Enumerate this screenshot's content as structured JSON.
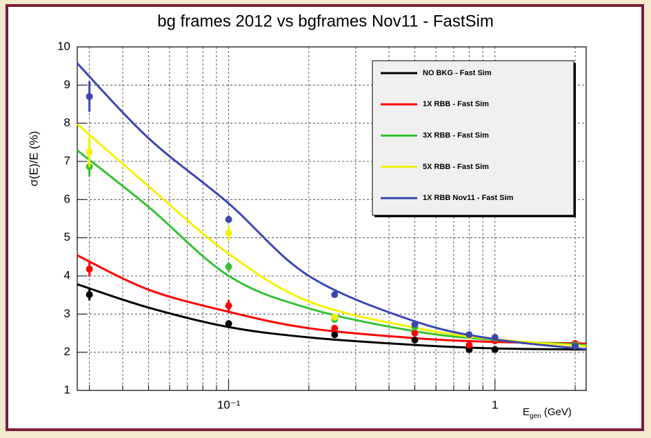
{
  "chart_data": {
    "type": "scatter-fit",
    "title": "bg frames 2012 vs bgframes Nov11 - FastSim",
    "xlabel": {
      "main": "E",
      "sub": "gen",
      "rest": " (GeV)"
    },
    "ylabel": "σ(E)/E (%)",
    "log_x": true,
    "grid": true,
    "legend_corner": "top-right",
    "xlim": [
      0.027,
      2.2
    ],
    "ylim": [
      1,
      10
    ],
    "xticks": [
      {
        "value": 0.1,
        "label": "10⁻¹"
      },
      1
    ],
    "xminor": [
      0.03,
      0.04,
      0.05,
      0.06,
      0.07,
      0.08,
      0.09,
      0.2,
      0.3,
      0.4,
      0.5,
      0.6,
      0.7,
      0.8,
      0.9,
      2
    ],
    "yticks": [
      1,
      2,
      3,
      4,
      5,
      6,
      7,
      8,
      9,
      10
    ],
    "x": [
      0.03,
      0.1,
      0.25,
      0.5,
      0.8,
      1.0,
      2.0
    ],
    "fit_x": [
      0.027,
      0.05,
      0.1,
      0.2,
      0.5,
      1,
      2.2
    ],
    "series": [
      {
        "name": "NO BKG - Fast Sim",
        "color": "#000000",
        "values": [
          3.51,
          2.75,
          2.46,
          2.32,
          2.07,
          2.07,
          2.14
        ],
        "errors": [
          0.15,
          0.05,
          0.07,
          0.07,
          0.05,
          0.05,
          0.05
        ],
        "fit_values": [
          3.78,
          3.17,
          2.66,
          2.39,
          2.19,
          2.1,
          2.07
        ]
      },
      {
        "name": "1X RBB - Fast Sim",
        "color": "#ff0000",
        "values": [
          4.18,
          3.22,
          2.63,
          2.5,
          2.19,
          2.3,
          2.23
        ],
        "errors": [
          0.2,
          0.15,
          0.08,
          0.07,
          0.05,
          0.05,
          0.05
        ],
        "fit_values": [
          4.54,
          3.64,
          3.06,
          2.63,
          2.37,
          2.27,
          2.23
        ]
      },
      {
        "name": "3X RBB - Fast Sim",
        "color": "#33c233",
        "values": [
          6.86,
          4.24,
          2.86,
          2.66,
          2.45,
          2.37,
          2.19
        ],
        "errors": [
          0.25,
          0.12,
          0.08,
          0.07,
          0.05,
          0.05,
          0.05
        ],
        "fit_values": [
          7.29,
          5.81,
          4.0,
          3.15,
          2.55,
          2.32,
          2.19
        ]
      },
      {
        "name": "5X RBB - Fast Sim",
        "color": "#f2f200",
        "values": [
          7.25,
          5.12,
          2.92,
          2.73,
          2.43,
          2.39,
          2.16
        ],
        "errors": [
          0.4,
          0.2,
          0.08,
          0.07,
          0.05,
          0.05,
          0.05
        ],
        "fit_values": [
          7.98,
          6.35,
          4.58,
          3.33,
          2.64,
          2.34,
          2.16
        ]
      },
      {
        "name": "1X RBB Nov11 - Fast Sim",
        "color": "#3b46b4",
        "values": [
          8.7,
          5.48,
          3.51,
          2.73,
          2.46,
          2.39,
          2.16
        ],
        "errors": [
          0.4,
          0.1,
          0.08,
          0.07,
          0.05,
          0.05,
          0.05
        ],
        "fit_values": [
          9.57,
          7.61,
          5.9,
          4.0,
          2.81,
          2.34,
          2.08
        ]
      }
    ]
  }
}
